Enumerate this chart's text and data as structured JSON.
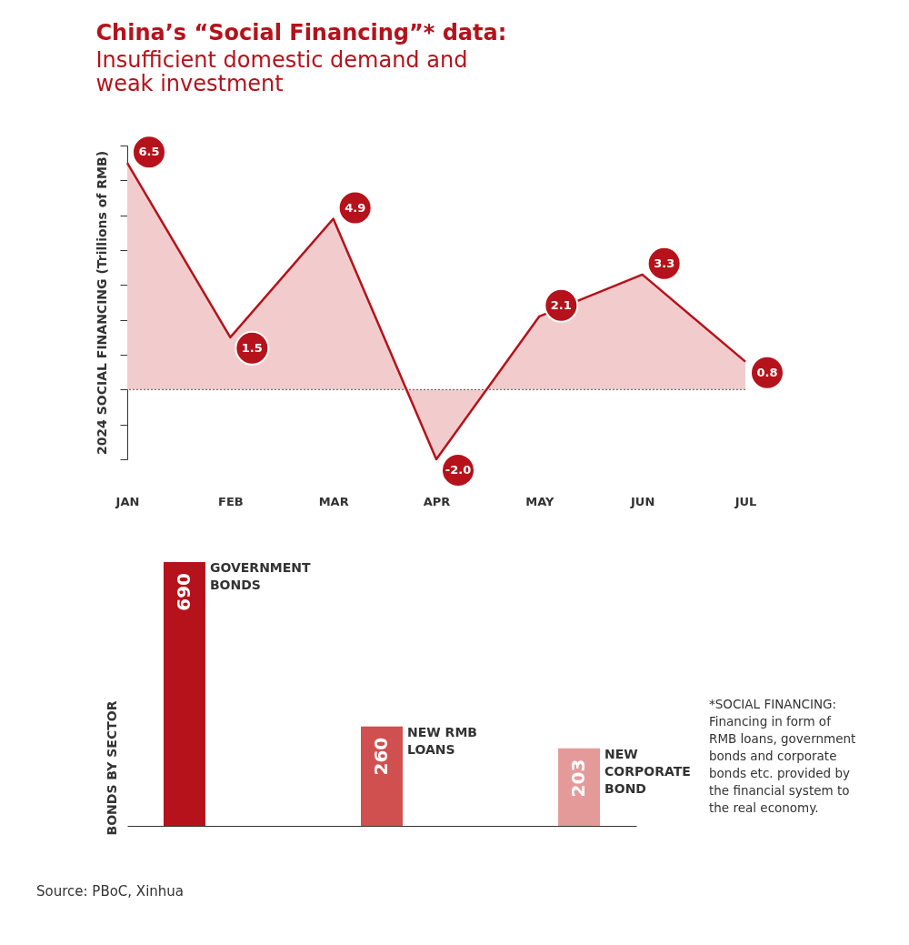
{
  "chart_data": [
    {
      "type": "area",
      "title": "China’s “Social Financing”* data:",
      "subtitle": "Insufficient domestic demand and weak investment",
      "ylabel": "2024 SOCIAL FINANCING  (Trillions of RMB)",
      "categories": [
        "JAN",
        "FEB",
        "MAR",
        "APR",
        "MAY",
        "JUN",
        "JUL"
      ],
      "series": [
        {
          "color": "#b5121b",
          "values": [
            6.5,
            1.5,
            4.9,
            -2.0,
            2.1,
            3.3,
            0.8
          ],
          "value_labels": [
            "6.5",
            "1.5",
            "4.9",
            "-2.0",
            "2.1",
            "3.3",
            "0.8"
          ]
        }
      ],
      "ylim": [
        -2,
        7
      ],
      "yticks": [
        {
          "value": -2,
          "label": null
        },
        {
          "value": -1,
          "label": null
        },
        {
          "value": 0,
          "label": null
        },
        {
          "value": 1,
          "label": null
        },
        {
          "value": 2,
          "label": null
        },
        {
          "value": 3,
          "label": null
        },
        {
          "value": 4,
          "label": null
        },
        {
          "value": 5,
          "label": null
        },
        {
          "value": 6,
          "label": null
        },
        {
          "value": 7,
          "label": null
        }
      ],
      "ref_lines": [
        {
          "axis": "y",
          "value": 0,
          "line_style": "dotted",
          "color": "#555555"
        }
      ],
      "tick_labels": "x",
      "grid": false
    },
    {
      "type": "bar",
      "ylabel": "BONDS BY SECTOR",
      "categories": [
        "GOVERNMENT BONDS",
        "NEW RMB LOANS",
        "NEW CORPORATE BOND"
      ],
      "values": [
        690,
        260,
        203
      ],
      "colors": [
        "#b5121b",
        "#d05050",
        "#e59a9a"
      ],
      "data_labels": true,
      "tick_labels": false,
      "grid": false,
      "annotations": [
        "*SOCIAL FINANCING: Financing in form of RMB loans, government bonds and corporate bonds etc. provided by the financial system to the real economy.",
        "Source: PBoC, Xinhua"
      ]
    }
  ]
}
